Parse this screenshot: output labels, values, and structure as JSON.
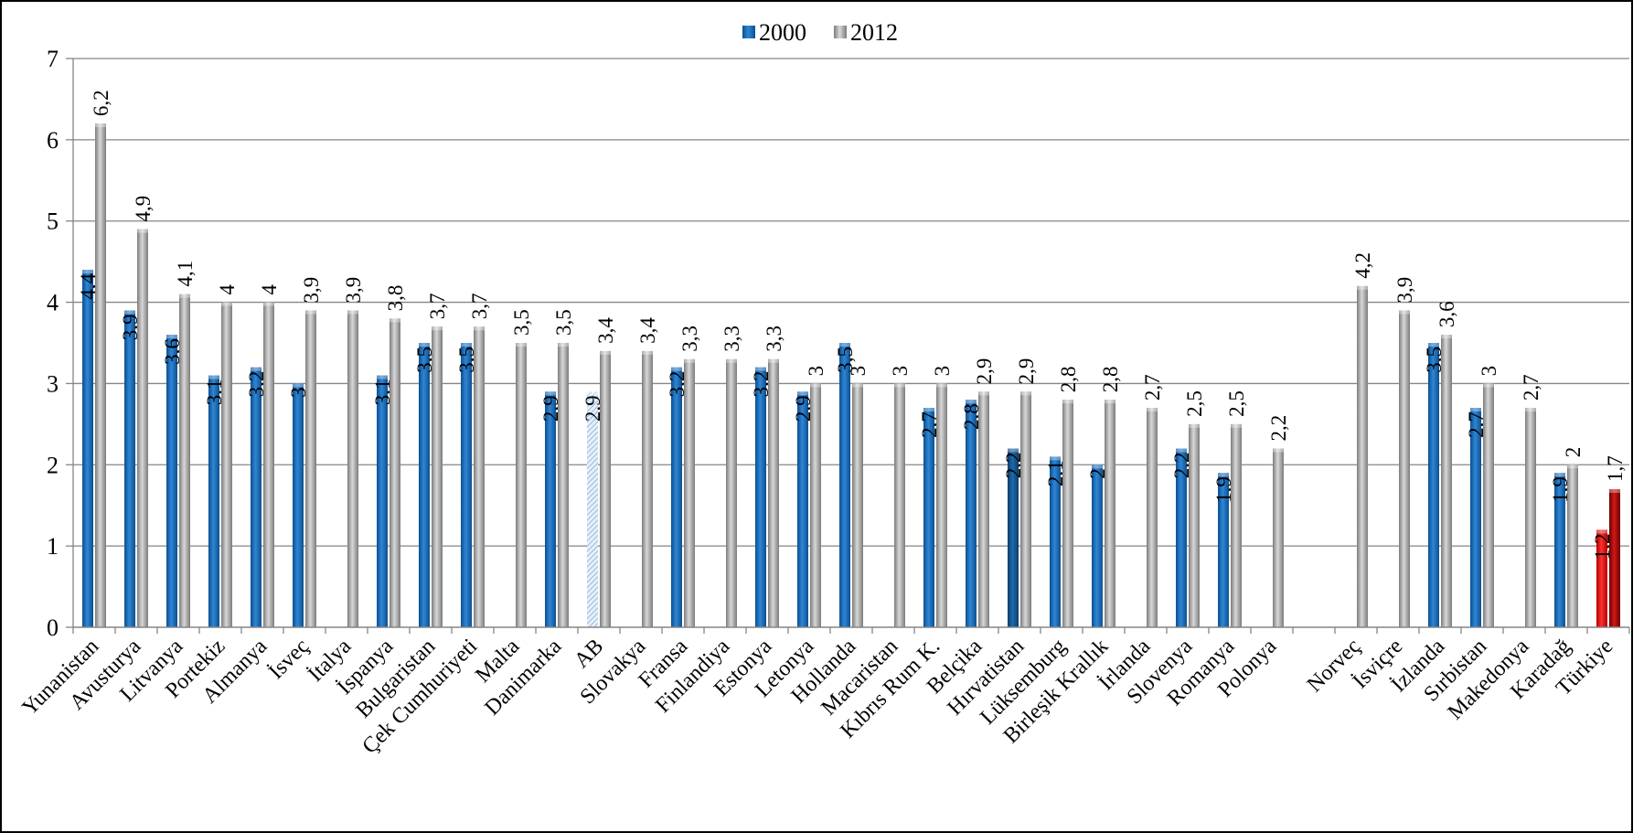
{
  "chart_data": {
    "type": "bar",
    "legend_position": "top-center",
    "grid": true,
    "ylim": [
      0,
      7
    ],
    "yticks": [
      "0",
      "1",
      "2",
      "3",
      "4",
      "5",
      "6",
      "7"
    ],
    "categories": [
      "Yunanistan",
      "Avusturya",
      "Litvanya",
      "Portekiz",
      "Almanya",
      "İsveç",
      "İtalya",
      "İspanya",
      "Bulgaristan",
      "Çek Cumhuriyeti",
      "Malta",
      "Danimarka",
      "AB",
      "Slovakya",
      "Fransa",
      "Finlandiya",
      "Estonya",
      "Letonya",
      "Hollanda",
      "Macaristan",
      "Kıbrıs Rum K.",
      "Belçika",
      "Hırvatistan",
      "Lüksemburg",
      "Birleşik Krallık",
      "İrlanda",
      "Slovenya",
      "Romanya",
      "Polonya",
      "",
      "Norveç",
      "İsviçre",
      "İzlanda",
      "Sırbistan",
      "Makedonya",
      "Karadağ",
      "Türkiye"
    ],
    "series": [
      {
        "name": "2000",
        "color": "#1f73c2",
        "values": [
          4.4,
          3.9,
          3.6,
          3.1,
          3.2,
          3,
          null,
          3.1,
          3.5,
          3.5,
          null,
          2.9,
          2.9,
          null,
          3.2,
          null,
          3.2,
          2.9,
          3.5,
          null,
          2.7,
          2.8,
          2.2,
          2.1,
          2,
          null,
          2.2,
          1.9,
          null,
          null,
          null,
          null,
          3.5,
          2.7,
          null,
          1.9,
          1.2
        ],
        "labels": [
          "4,4",
          "3,9",
          "3,6",
          "3,1",
          "3,2",
          "3",
          "",
          "3,1",
          "3,5",
          "3,5",
          "",
          "2,9",
          "2,9",
          "",
          "3,2",
          "",
          "3,2",
          "2,9",
          "3,5",
          "",
          "2,7",
          "2,8",
          "2,2",
          "2,1",
          "2",
          "",
          "2,2",
          "1,9",
          "",
          "",
          "",
          "",
          "3,5",
          "2,7",
          "",
          "1,9",
          "1,2"
        ]
      },
      {
        "name": "2012",
        "color": "#a6a6a6",
        "values": [
          6.2,
          4.9,
          4.1,
          4,
          4,
          3.9,
          3.9,
          3.8,
          3.7,
          3.7,
          3.5,
          3.5,
          3.4,
          3.4,
          3.3,
          3.3,
          3.3,
          3,
          3,
          3,
          3,
          2.9,
          2.9,
          2.8,
          2.8,
          2.7,
          2.5,
          2.5,
          2.2,
          null,
          4.2,
          3.9,
          3.6,
          3,
          2.7,
          2,
          1.7
        ],
        "labels": [
          "6,2",
          "4,9",
          "4,1",
          "4",
          "4",
          "3,9",
          "3,9",
          "3,8",
          "3,7",
          "3,7",
          "3,5",
          "3,5",
          "3,4",
          "3,4",
          "3,3",
          "3,3",
          "3,3",
          "3",
          "3",
          "3",
          "3",
          "2,9",
          "2,9",
          "2,8",
          "2,8",
          "2,7",
          "2,5",
          "2,5",
          "2,2",
          "",
          "4,2",
          "3,9",
          "3,6",
          "3",
          "2,7",
          "2",
          "1,7"
        ]
      }
    ],
    "highlight": {
      "AB": "hatched-light-blue",
      "Hırvatistan_2000": "#1a5a92",
      "Türkiye": [
        "#e02020",
        "#b01010"
      ]
    }
  }
}
